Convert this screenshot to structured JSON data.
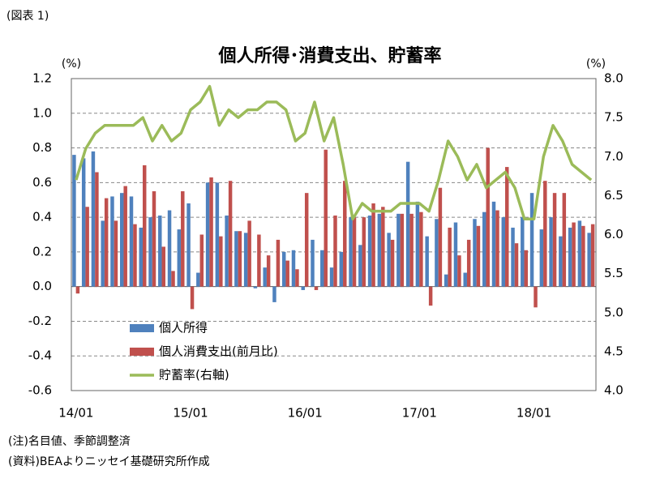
{
  "chart_data": {
    "type": "bar_line",
    "figure_label": "(図表 1)",
    "title": "個人所得･消費支出、貯蓄率",
    "y_unit": "(%)",
    "y2_unit": "(%)",
    "notes": [
      "(注)名目値、季節調整済",
      "(資料)BEAよりニッセイ基礎研究所作成"
    ],
    "categories": [
      "14/01",
      null,
      null,
      null,
      null,
      null,
      null,
      null,
      null,
      null,
      null,
      null,
      "15/01",
      null,
      null,
      null,
      null,
      null,
      null,
      null,
      null,
      null,
      null,
      null,
      "16/01",
      null,
      null,
      null,
      null,
      null,
      null,
      null,
      null,
      null,
      null,
      null,
      "17/01",
      null,
      null,
      null,
      null,
      null,
      null,
      null,
      null,
      null,
      null,
      null,
      "18/01",
      null,
      null,
      null,
      null,
      null,
      null
    ],
    "series": [
      {
        "name": "個人所得",
        "color": "#4f81bd",
        "kind": "bar",
        "values": [
          0.76,
          0.74,
          0.78,
          0.38,
          0.52,
          0.54,
          0.52,
          0.34,
          0.4,
          0.41,
          0.44,
          0.33,
          0.48,
          0.08,
          0.6,
          0.6,
          0.41,
          0.32,
          0.31,
          -0.01,
          0.11,
          -0.09,
          0.2,
          0.21,
          -0.02,
          0.27,
          0.21,
          0.11,
          0.2,
          0.4,
          0.24,
          0.41,
          0.42,
          0.31,
          0.42,
          0.72,
          0.49,
          0.29,
          0.39,
          0.07,
          0.37,
          0.08,
          0.39,
          0.43,
          0.49,
          0.4,
          0.34,
          0.4,
          0.54,
          0.33,
          0.4,
          0.29,
          0.34,
          0.38,
          0.31
        ]
      },
      {
        "name": "個人消費支出(前月比)",
        "color": "#c0504d",
        "kind": "bar",
        "values": [
          -0.04,
          0.46,
          0.66,
          0.51,
          0.38,
          0.58,
          0.36,
          0.7,
          0.55,
          0.23,
          0.09,
          0.55,
          -0.13,
          0.3,
          0.63,
          0.29,
          0.61,
          0.32,
          0.38,
          0.3,
          0.18,
          0.27,
          0.15,
          0.1,
          0.54,
          -0.02,
          0.79,
          0.41,
          0.61,
          0.4,
          0.4,
          0.48,
          0.46,
          0.27,
          0.42,
          0.42,
          0.43,
          -0.11,
          0.57,
          0.34,
          0.18,
          0.27,
          0.35,
          0.8,
          0.44,
          0.69,
          0.25,
          0.21,
          -0.12,
          0.61,
          0.54,
          0.54,
          0.37,
          0.35,
          0.36
        ]
      },
      {
        "name": "貯蓄率(右軸)",
        "color": "#9bbb59",
        "kind": "line",
        "axis": "y2",
        "values": [
          6.7,
          7.1,
          7.3,
          7.4,
          7.4,
          7.4,
          7.4,
          7.5,
          7.2,
          7.4,
          7.2,
          7.3,
          7.6,
          7.7,
          7.9,
          7.4,
          7.6,
          7.5,
          7.6,
          7.6,
          7.7,
          7.7,
          7.6,
          7.2,
          7.3,
          7.7,
          7.2,
          7.5,
          6.9,
          6.2,
          6.4,
          6.3,
          6.3,
          6.3,
          6.4,
          6.4,
          6.4,
          6.3,
          6.7,
          7.2,
          7.0,
          6.7,
          6.9,
          6.6,
          6.7,
          6.8,
          6.6,
          6.2,
          6.2,
          7.0,
          7.4,
          7.2,
          6.9,
          6.8,
          6.7
        ]
      }
    ],
    "ylim": [
      -0.6,
      1.2
    ],
    "yticks": [
      -0.6,
      -0.4,
      -0.2,
      {
        "value": 0,
        "label": "0.0"
      },
      0.2,
      0.4,
      0.6,
      0.8,
      {
        "value": 1,
        "label": "1.0"
      },
      1.2
    ],
    "y2lim": [
      4,
      8
    ],
    "y2ticks": [
      {
        "value": 4,
        "label": "4.0"
      },
      4.5,
      {
        "value": 5,
        "label": "5.0"
      },
      5.5,
      {
        "value": 6,
        "label": "6.0"
      },
      6.5,
      {
        "value": 7,
        "label": "7.0"
      },
      7.5,
      {
        "value": 8,
        "label": "8.0"
      }
    ],
    "grid": true,
    "legend": "lower-left"
  }
}
